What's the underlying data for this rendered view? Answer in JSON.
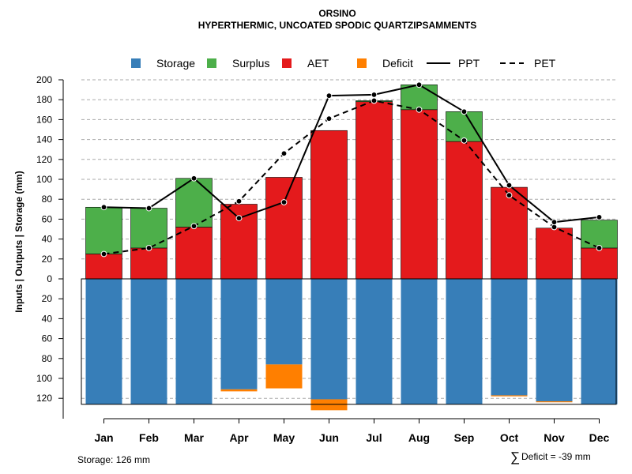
{
  "chart_data": {
    "type": "bar",
    "title": "ORSINO",
    "subtitle": "HYPERTHERMIC, UNCOATED SPODIC QUARTZIPSAMMENTS",
    "ylabel": "Inputs | Outputs | Storage    (mm)",
    "categories": [
      "Jan",
      "Feb",
      "Mar",
      "Apr",
      "May",
      "Jun",
      "Jul",
      "Aug",
      "Sep",
      "Oct",
      "Nov",
      "Dec"
    ],
    "ylim": [
      -126,
      200
    ],
    "yticks": [
      200,
      180,
      160,
      140,
      120,
      100,
      80,
      60,
      40,
      20,
      0,
      -20,
      -40,
      -60,
      -80,
      -100,
      -120
    ],
    "ytick_labels": [
      "200",
      "180",
      "160",
      "140",
      "120",
      "100",
      "80",
      "60",
      "40",
      "20",
      "0",
      "20",
      "40",
      "60",
      "80",
      "100",
      "120"
    ],
    "legend_position": "top",
    "legend": [
      {
        "label": "Storage",
        "kind": "square",
        "color": "#377eb8"
      },
      {
        "label": "Surplus",
        "kind": "square",
        "color": "#4daf4a"
      },
      {
        "label": "AET",
        "kind": "square",
        "color": "#e41a1c"
      },
      {
        "label": "Deficit",
        "kind": "square",
        "color": "#ff7f00"
      },
      {
        "label": "PPT",
        "kind": "line-solid",
        "color": "#000000"
      },
      {
        "label": "PET",
        "kind": "line-dashed",
        "color": "#000000"
      }
    ],
    "series": [
      {
        "name": "AET",
        "color": "#e41a1c",
        "values": [
          25,
          31,
          52,
          75,
          102,
          149,
          178,
          170,
          138,
          92,
          51,
          31
        ]
      },
      {
        "name": "Surplus",
        "color": "#4daf4a",
        "values": [
          47,
          40,
          49,
          0,
          0,
          0,
          1,
          25,
          30,
          0,
          0,
          28
        ]
      },
      {
        "name": "Storage",
        "color": "#377eb8",
        "values": [
          126,
          126,
          126,
          111,
          86,
          121,
          126,
          126,
          126,
          117,
          123,
          126
        ]
      },
      {
        "name": "Deficit",
        "color": "#ff7f00",
        "values": [
          0,
          0,
          0,
          2,
          24,
          11,
          0,
          0,
          0,
          1,
          1,
          0
        ]
      },
      {
        "name": "PPT",
        "color": "#000000",
        "values": [
          72,
          71,
          101,
          61,
          77,
          184,
          185,
          195,
          168,
          94,
          57,
          62
        ]
      },
      {
        "name": "PET",
        "color": "#000000",
        "values": [
          25,
          31,
          53,
          78,
          126,
          161,
          179,
          170,
          139,
          84,
          52,
          31
        ]
      }
    ],
    "annotations": {
      "storage": "Storage: 126 mm",
      "deficit_symbol": "∑",
      "deficit": "Deficit = -39 mm"
    }
  }
}
